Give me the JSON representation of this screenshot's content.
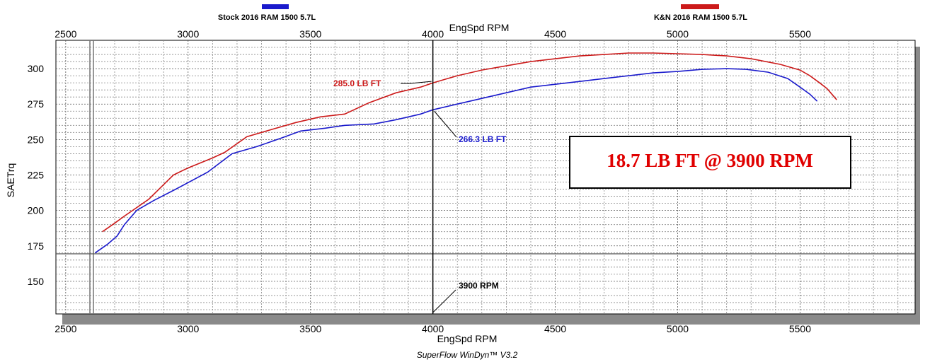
{
  "chart_data": {
    "type": "line",
    "xlabel": "EngSpd RPM",
    "ylabel": "SAETrq",
    "xlim": [
      2460,
      5970
    ],
    "ylim": [
      127,
      320
    ],
    "x_ticks": [
      2500,
      3000,
      3500,
      4000,
      4500,
      5000,
      5500
    ],
    "y_ticks": [
      150,
      175,
      200,
      225,
      250,
      275,
      300
    ],
    "grid": true,
    "legend_position": "top",
    "series": [
      {
        "name": "Stock 2016 RAM 1500 5.7L",
        "color": "#1a1acc",
        "x": [
          2620,
          2670,
          2710,
          2740,
          2790,
          2860,
          2950,
          3080,
          3180,
          3280,
          3380,
          3460,
          3560,
          3640,
          3760,
          3850,
          3950,
          4000,
          4100,
          4200,
          4300,
          4400,
          4500,
          4600,
          4700,
          4800,
          4900,
          5000,
          5100,
          5200,
          5280,
          5370,
          5450,
          5500,
          5540,
          5570
        ],
        "y": [
          170,
          176,
          182,
          190,
          200,
          207,
          215,
          227,
          240,
          245,
          251,
          256,
          258,
          260,
          261,
          264,
          268,
          271,
          275,
          279,
          283,
          287,
          289,
          291,
          293,
          295,
          297,
          298,
          299.5,
          300,
          299.5,
          297.5,
          293,
          287,
          282,
          277
        ]
      },
      {
        "name": "K&N 2016 RAM 1500 5.7L",
        "color": "#cc1a1a",
        "x": [
          2650,
          2700,
          2740,
          2840,
          2940,
          3000,
          3100,
          3150,
          3240,
          3320,
          3440,
          3540,
          3640,
          3740,
          3850,
          3950,
          4000,
          4100,
          4200,
          4300,
          4400,
          4500,
          4600,
          4700,
          4800,
          4900,
          5000,
          5100,
          5200,
          5300,
          5420,
          5500,
          5540,
          5580,
          5610,
          5630,
          5650
        ],
        "y": [
          185,
          191,
          196,
          208,
          225,
          230,
          237,
          241,
          252,
          256,
          262,
          266,
          268,
          276,
          283,
          287,
          290,
          295,
          299,
          302,
          305,
          307,
          309,
          310,
          311,
          311,
          310.5,
          310,
          309,
          307,
          303,
          299,
          295,
          290,
          286,
          282,
          278
        ]
      }
    ],
    "annotations": {
      "red_value": "285.0 LB FT",
      "blue_value": "266.3 LB FT",
      "rpm_marker": "3900 RPM",
      "marker_rpm": 4000,
      "callout": "18.7 LB FT @ 3900 RPM"
    },
    "footer": "SuperFlow WinDyn™ V3.2"
  }
}
